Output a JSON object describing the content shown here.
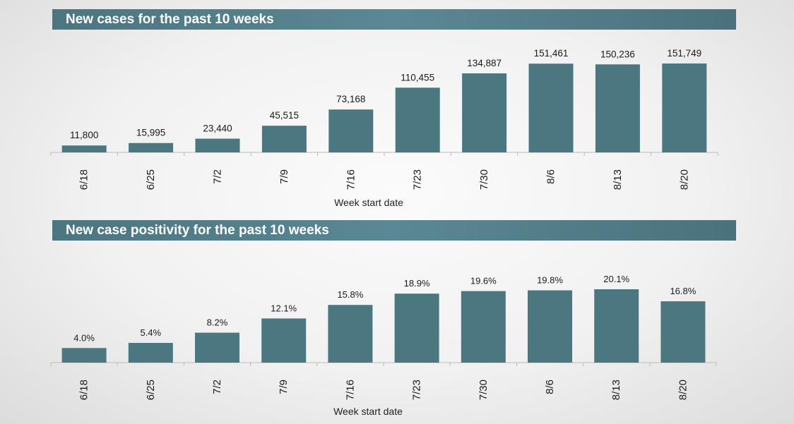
{
  "charts": [
    {
      "title": "New cases for the past 10 weeks",
      "bar_color": "#4b7781",
      "chart_data": {
        "type": "bar",
        "title": "New cases for the past 10 weeks",
        "xlabel": "Week start date",
        "ylabel": "",
        "categories": [
          "6/18",
          "6/25",
          "7/2",
          "7/9",
          "7/16",
          "7/23",
          "7/30",
          "8/6",
          "8/13",
          "8/20"
        ],
        "values": [
          11800,
          15995,
          23440,
          45515,
          73168,
          110455,
          134887,
          151461,
          150236,
          151749
        ],
        "data_labels": [
          "11,800",
          "15,995",
          "23,440",
          "45,515",
          "73,168",
          "110,455",
          "134,887",
          "151,461",
          "150,236",
          "151,749"
        ],
        "ylim": [
          0,
          151749
        ],
        "grid": false
      }
    },
    {
      "title": "New case positivity for the past 10 weeks",
      "bar_color": "#4b7781",
      "chart_data": {
        "type": "bar",
        "title": "New case positivity for the past 10 weeks",
        "xlabel": "Week start date",
        "ylabel": "",
        "categories": [
          "6/18",
          "6/25",
          "7/2",
          "7/9",
          "7/16",
          "7/23",
          "7/30",
          "8/6",
          "8/13",
          "8/20"
        ],
        "values": [
          4.0,
          5.4,
          8.2,
          12.1,
          15.8,
          18.9,
          19.6,
          19.8,
          20.1,
          16.8
        ],
        "data_labels": [
          "4.0%",
          "5.4%",
          "8.2%",
          "12.1%",
          "15.8%",
          "18.9%",
          "19.6%",
          "19.8%",
          "20.1%",
          "16.8%"
        ],
        "ylim": [
          0,
          20.1
        ],
        "grid": false
      }
    }
  ]
}
